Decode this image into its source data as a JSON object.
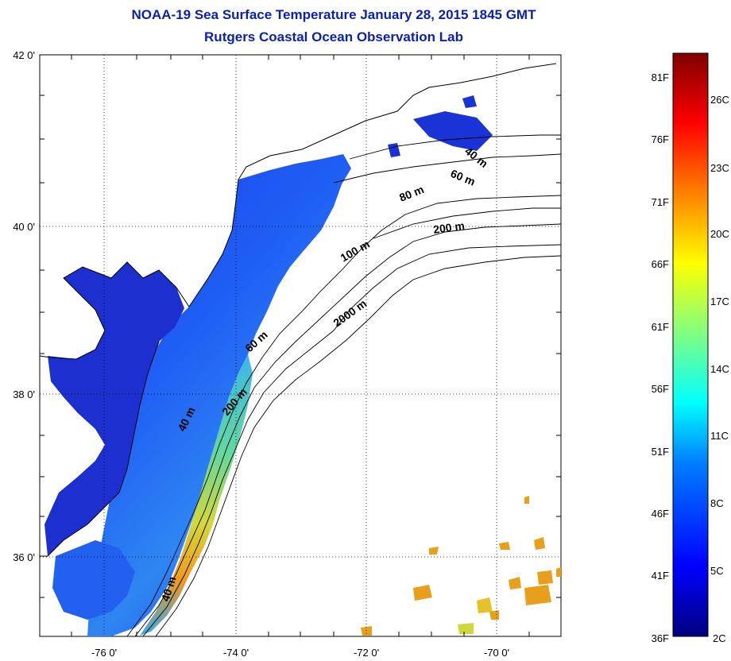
{
  "title": "NOAA-19 Sea Surface Temperature January 28, 2015 1845 GMT",
  "subtitle": "Rutgers Coastal Ocean Observation Lab",
  "map": {
    "lat_labels": [
      "42 0'",
      "40 0'",
      "38 0'",
      "36 0'"
    ],
    "lon_labels": [
      "-76 0'",
      "-74 0'",
      "-72 0'",
      "-70 0'"
    ],
    "lat_range": [
      35,
      42
    ],
    "lon_range": [
      -77,
      -69
    ],
    "grid": "dotted",
    "depth_contours": [
      "40 m",
      "60 m",
      "80 m",
      "100 m",
      "200 m",
      "2000 m",
      "60 m",
      "200 m",
      "40 m",
      "40 m"
    ],
    "land_color": "#ffffff",
    "coast_color": "#000000"
  },
  "colorbar": {
    "fahrenheit_labels": [
      "81F",
      "76F",
      "71F",
      "66F",
      "61F",
      "56F",
      "51F",
      "46F",
      "41F",
      "36F"
    ],
    "celsius_labels": [
      "26C",
      "23C",
      "20C",
      "17C",
      "14C",
      "11C",
      "8C",
      "5C",
      "2C"
    ],
    "colors": [
      "#00007f",
      "#0000ff",
      "#0080ff",
      "#00ffff",
      "#80ff80",
      "#ffff00",
      "#ff8000",
      "#ff0000",
      "#7f0000"
    ]
  }
}
